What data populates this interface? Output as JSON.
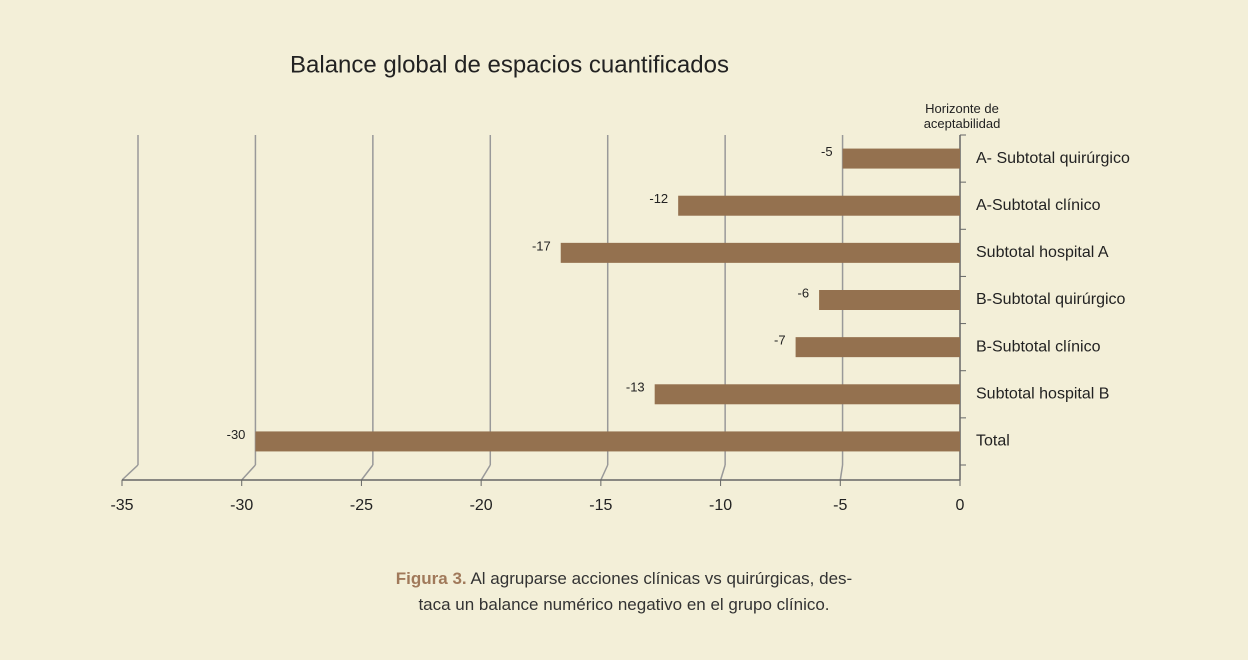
{
  "chart_data": {
    "type": "bar",
    "orientation": "horizontal",
    "title": "Balance global de espacios cuantificados",
    "annotation": "Horizonte de aceptabilidad",
    "categories": [
      "A- Subtotal quirúrgico",
      "A-Subtotal clínico",
      "Subtotal hospital A",
      "B-Subtotal quirúrgico",
      "B-Subtotal clínico",
      "Subtotal hospital B",
      "Total"
    ],
    "values": [
      -5,
      -12,
      -17,
      -6,
      -7,
      -13,
      -30
    ],
    "color": "#94714f",
    "xlim": [
      -35,
      0
    ],
    "xticks": [
      -35,
      -30,
      -25,
      -20,
      -15,
      -10,
      -5,
      0
    ],
    "grid": true
  },
  "caption": {
    "label": "Figura 3.",
    "lines": [
      "Al agruparse acciones clínicas vs quirúrgicas, des-",
      "taca un balance numérico negativo en el grupo clínico."
    ]
  }
}
